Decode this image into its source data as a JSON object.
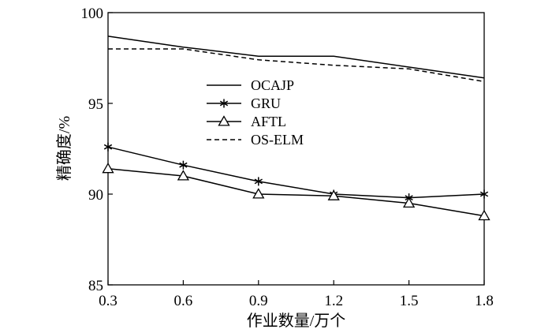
{
  "chart_data": {
    "type": "line",
    "xlabel": "作业数量/万个",
    "ylabel": "精确度/%",
    "x": [
      0.3,
      0.6,
      0.9,
      1.2,
      1.5,
      1.8
    ],
    "x_tick_labels": [
      "0.3",
      "0.6",
      "0.9",
      "1.2",
      "1.5",
      "1.8"
    ],
    "y_ticks": [
      85,
      90,
      95,
      100
    ],
    "y_tick_labels": [
      "85",
      "90",
      "95",
      "100"
    ],
    "xlim": [
      0.3,
      1.8
    ],
    "ylim": [
      85,
      100
    ],
    "grid": false,
    "legend_position": "upper-middle",
    "series": [
      {
        "name": "OCAJP",
        "values": [
          98.7,
          98.1,
          97.6,
          97.6,
          97.0,
          96.4
        ],
        "marker": "none",
        "dash": "solid",
        "color": "#000000"
      },
      {
        "name": "GRU",
        "values": [
          92.6,
          91.6,
          90.7,
          90.0,
          89.8,
          90.0
        ],
        "marker": "asterisk",
        "dash": "solid",
        "color": "#000000"
      },
      {
        "name": "AFTL",
        "values": [
          91.4,
          91.0,
          90.0,
          89.9,
          89.5,
          88.8
        ],
        "marker": "triangle",
        "dash": "solid",
        "color": "#000000"
      },
      {
        "name": "OS-ELM",
        "values": [
          98.0,
          98.0,
          97.4,
          97.1,
          96.9,
          96.2
        ],
        "marker": "none",
        "dash": "dashed",
        "color": "#000000"
      }
    ]
  }
}
